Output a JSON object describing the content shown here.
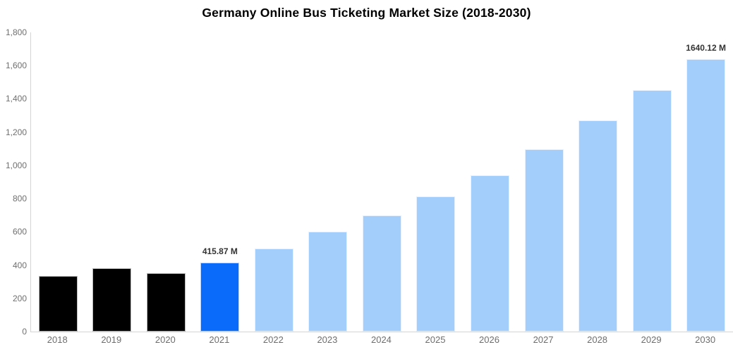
{
  "chart_data": {
    "type": "bar",
    "title": "Germany Online Bus Ticketing Market Size (2018-2030)",
    "xlabel": "",
    "ylabel": "",
    "unit": "M",
    "categories": [
      "2018",
      "2019",
      "2020",
      "2021",
      "2022",
      "2023",
      "2024",
      "2025",
      "2026",
      "2027",
      "2028",
      "2029",
      "2030"
    ],
    "values": [
      335,
      382,
      350,
      415.87,
      500,
      600,
      698,
      812,
      940,
      1096,
      1270,
      1452,
      1640.12
    ],
    "bar_styles": [
      "dark",
      "dark",
      "dark",
      "highlight",
      "light",
      "light",
      "light",
      "light",
      "light",
      "light",
      "light",
      "light",
      "light"
    ],
    "bar_labels": [
      null,
      null,
      null,
      "415.87 M",
      null,
      null,
      null,
      null,
      null,
      null,
      null,
      null,
      "1640.12 M"
    ],
    "ylim": [
      0,
      1800
    ],
    "ytick_step": 200,
    "y_ticks": [
      "1,800",
      "1,600",
      "1,400",
      "1,200",
      "1,000",
      "800",
      "600",
      "400",
      "200",
      "0"
    ],
    "grid": false,
    "legend": "none",
    "colors": {
      "dark": "#000000",
      "highlight": "#0a6bfb",
      "light": "#a3cdfa",
      "axis_line": "#d4d4d4",
      "tick_text": "#6f6f6f",
      "value_label_text": "#333333",
      "title_text": "#000000",
      "background": "#ffffff"
    }
  }
}
